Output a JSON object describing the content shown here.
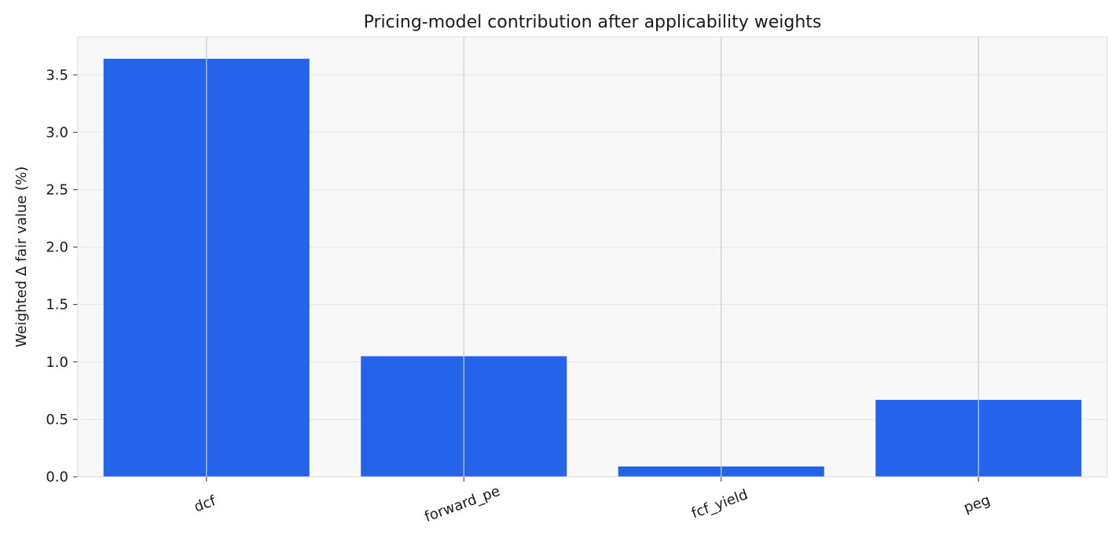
{
  "chart_data": {
    "type": "bar",
    "title": "Pricing-model contribution after applicability weights",
    "xlabel": "",
    "ylabel": "Weighted Δ fair value (%)",
    "categories": [
      "dcf",
      "forward_pe",
      "fcf_yield",
      "peg"
    ],
    "values": [
      3.64,
      1.05,
      0.09,
      0.67
    ],
    "ylim": [
      0,
      3.83
    ],
    "yticks": [
      "0.0",
      "0.5",
      "1.0",
      "1.5",
      "2.0",
      "2.5",
      "3.0",
      "3.5"
    ],
    "grid": true,
    "legend": "none",
    "colors": {
      "bar": "#2563eb",
      "plot_background": "#f8f8f8",
      "gridline": "#e9e9e9",
      "x_gridline": "#cccccc",
      "spine": "#dddddd",
      "text": "#1a1a1a"
    }
  }
}
